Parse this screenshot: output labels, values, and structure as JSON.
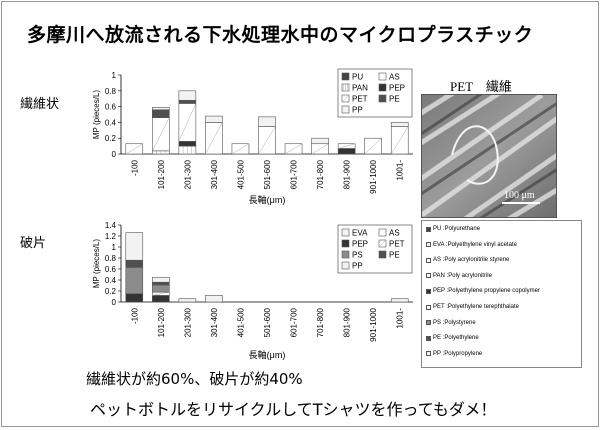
{
  "title": "多摩川へ放流される下水処理水中のマイクロプラスチック",
  "colors": {
    "PU": "#444444",
    "AS": "#ffffff",
    "PAN": "#ffffff",
    "PEP": "#333333",
    "PET": "#ffffff",
    "PE": "#505050",
    "PP": "#f2f2f2",
    "EVA": "#f4f4f4",
    "PS": "#8c8c8c"
  },
  "fiber": {
    "label": "繊維状",
    "chart_data": {
      "type": "bar",
      "stacked": true,
      "categories": [
        "-100",
        "101-200",
        "201-300",
        "301-400",
        "401-500",
        "501-600",
        "601-700",
        "701-800",
        "801-900",
        "901-1000",
        "1001-"
      ],
      "series": [
        {
          "name": "PU",
          "values": [
            0,
            0,
            0,
            0,
            0,
            0,
            0,
            0,
            0,
            0,
            0
          ]
        },
        {
          "name": "AS",
          "values": [
            0,
            0,
            0,
            0,
            0,
            0,
            0,
            0,
            0,
            0,
            0
          ]
        },
        {
          "name": "PAN",
          "values": [
            0,
            0.04,
            0.1,
            0,
            0,
            0,
            0,
            0,
            0,
            0,
            0
          ]
        },
        {
          "name": "PEP",
          "values": [
            0,
            0,
            0.06,
            0,
            0,
            0,
            0,
            0,
            0.07,
            0,
            0
          ]
        },
        {
          "name": "PET",
          "values": [
            0.13,
            0.42,
            0.48,
            0.4,
            0.13,
            0.35,
            0.13,
            0.13,
            0.06,
            0.2,
            0.35
          ]
        },
        {
          "name": "PE",
          "values": [
            0,
            0.1,
            0.04,
            0,
            0,
            0,
            0,
            0,
            0,
            0,
            0
          ]
        },
        {
          "name": "PP",
          "values": [
            0,
            0.03,
            0.12,
            0.08,
            0,
            0.12,
            0,
            0.07,
            0,
            0,
            0.05
          ]
        }
      ],
      "ylabel": "MP (pieces/L)",
      "xlabel": "長軸(μm)",
      "ylim": [
        0,
        1
      ],
      "yticks": [
        "0",
        "0.2",
        "0.4",
        "0.6",
        "0.8",
        "1"
      ],
      "legend_position": "top-right",
      "legend": [
        "PU",
        "AS",
        "PAN",
        "PEP",
        "PET",
        "PE",
        "PP"
      ]
    }
  },
  "fragment": {
    "label": "破片",
    "chart_data": {
      "type": "bar",
      "stacked": true,
      "categories": [
        "-100",
        "101-200",
        "201-300",
        "301-400",
        "401-500",
        "501-600",
        "601-700",
        "701-800",
        "801-900",
        "901-1000",
        "1001-"
      ],
      "series": [
        {
          "name": "EVA",
          "values": [
            0,
            0,
            0,
            0,
            0,
            0,
            0,
            0,
            0,
            0,
            0
          ]
        },
        {
          "name": "AS",
          "values": [
            0,
            0,
            0,
            0,
            0,
            0,
            0,
            0,
            0,
            0,
            0
          ]
        },
        {
          "name": "PEP",
          "values": [
            0.15,
            0.12,
            0,
            0,
            0,
            0,
            0,
            0,
            0,
            0,
            0
          ]
        },
        {
          "name": "PET",
          "values": [
            0,
            0.06,
            0,
            0,
            0,
            0,
            0,
            0,
            0,
            0,
            0
          ]
        },
        {
          "name": "PS",
          "values": [
            0.48,
            0.13,
            0,
            0,
            0,
            0,
            0,
            0,
            0,
            0,
            0
          ]
        },
        {
          "name": "PE",
          "values": [
            0.13,
            0.05,
            0,
            0,
            0,
            0,
            0,
            0,
            0,
            0,
            0
          ]
        },
        {
          "name": "PP",
          "values": [
            0.5,
            0.09,
            0.06,
            0.12,
            0,
            0,
            0,
            0,
            0,
            0,
            0.06
          ]
        }
      ],
      "ylabel": "MP (pieces/L)",
      "xlabel": "長軸(μm)",
      "ylim": [
        0,
        1.4
      ],
      "yticks": [
        "0",
        "0.2",
        "0.4",
        "0.6",
        "0.8",
        "1",
        "1.2",
        "1.4"
      ],
      "legend_position": "top-right",
      "legend": [
        "EVA",
        "AS",
        "PEP",
        "PET",
        "PS",
        "PE",
        "PP"
      ]
    }
  },
  "photo": {
    "title": "PET　繊維",
    "scale": "100 μm"
  },
  "glossary": [
    {
      "abbr": "PU",
      "text": "PU :Polyurethane"
    },
    {
      "abbr": "EVA",
      "text": "EVA :Polyethylene vinyl acetate"
    },
    {
      "abbr": "AS",
      "text": "AS :Poly acrylonitrile styrene"
    },
    {
      "abbr": "PAN",
      "text": "PAN :Poly acrylonitrile"
    },
    {
      "abbr": "PEP",
      "text": "PEP :Polyethylene propylene  copolymer"
    },
    {
      "abbr": "PET",
      "text": "PET :Polyethylene terephthalate"
    },
    {
      "abbr": "PS",
      "text": "PS :Polystyrene"
    },
    {
      "abbr": "PE",
      "text": "PE :Polyethylene"
    },
    {
      "abbr": "PP",
      "text": "PP :Polypropylene"
    }
  ],
  "summary": "繊維状が約60%、破片が約40%",
  "message": "ペットボトルをリサイクルしてTシャツを作ってもダメ！"
}
